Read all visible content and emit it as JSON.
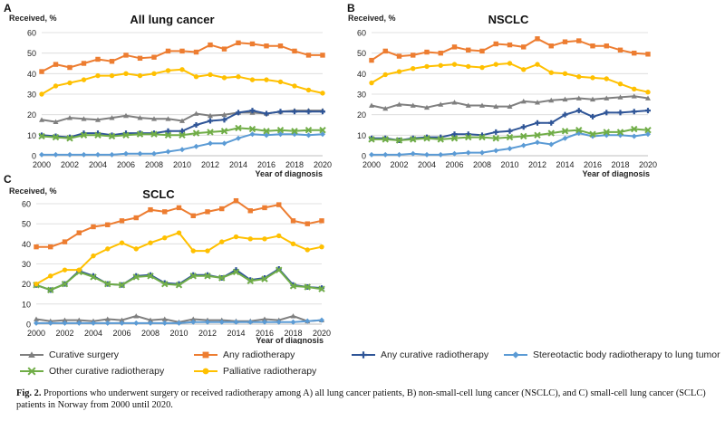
{
  "legend": [
    {
      "key": "curative_surgery",
      "label": "Curative surgery",
      "color": "#7f7f7f",
      "marker": "triangle"
    },
    {
      "key": "any_radiotherapy",
      "label": "Any radiotherapy",
      "color": "#ed7d31",
      "marker": "square"
    },
    {
      "key": "any_curative_rt",
      "label": "Any curative radiotherapy",
      "color": "#2f5597",
      "marker": "plus"
    },
    {
      "key": "sbrt",
      "label": "Stereotactic body radiotherapy to lung tumor",
      "color": "#5b9bd5",
      "marker": "diamond"
    },
    {
      "key": "other_curative_rt",
      "label": "Other curative radiotherapy",
      "color": "#70ad47",
      "marker": "cross"
    },
    {
      "key": "palliative_rt",
      "label": "Palliative radiotherapy",
      "color": "#ffc000",
      "marker": "circle"
    }
  ],
  "caption": {
    "label": "Fig. 2.",
    "text": "Proportions who underwent surgery or received radiotherapy among A) all lung cancer patients, B) non-small-cell lung cancer (NSCLC), and C) small-cell lung cancer (SCLC) patients in Norway from 2000 until 2020."
  },
  "chart_data": [
    {
      "type": "line",
      "panel": "A",
      "title": "All lung cancer",
      "ylabel": "Received, %",
      "xlabel": "Year of diagnosis",
      "ylim": [
        0,
        60
      ],
      "yticks": [
        "0",
        "10",
        "20",
        "30",
        "40",
        "50",
        "60"
      ],
      "x": [
        2000,
        2001,
        2002,
        2003,
        2004,
        2005,
        2006,
        2007,
        2008,
        2009,
        2010,
        2011,
        2012,
        2013,
        2014,
        2015,
        2016,
        2017,
        2018,
        2019,
        2020
      ],
      "xticks": [
        "2000",
        "2002",
        "2004",
        "2006",
        "2008",
        "2010",
        "2012",
        "2014",
        "2016",
        "2018",
        "2020"
      ],
      "series": [
        {
          "key": "curative_surgery",
          "values": [
            17.5,
            16.5,
            18.5,
            18,
            17.5,
            18.5,
            19.5,
            18.5,
            18,
            18,
            17,
            20.5,
            19.5,
            20,
            21,
            21,
            20.5,
            21.5,
            22,
            22,
            22
          ]
        },
        {
          "key": "any_radiotherapy",
          "values": [
            41,
            44.5,
            43,
            45,
            47,
            46,
            49,
            47.5,
            48,
            51,
            51,
            50.5,
            54,
            52,
            55,
            54.5,
            53.5,
            53.5,
            51,
            49,
            49
          ]
        },
        {
          "key": "any_curative_rt",
          "values": [
            10,
            9.5,
            9,
            11,
            11,
            10,
            11,
            11,
            11,
            12,
            12,
            15,
            17,
            17.5,
            21,
            22,
            20.5,
            21.5,
            21.5,
            21.5,
            21.5
          ]
        },
        {
          "key": "sbrt",
          "values": [
            0.5,
            0.5,
            0.5,
            0.5,
            0.5,
            0.5,
            1,
            1,
            1,
            2,
            3,
            4.5,
            6,
            6,
            8.5,
            10.5,
            10,
            10.5,
            10.5,
            10,
            10.5
          ]
        },
        {
          "key": "other_curative_rt",
          "values": [
            9.5,
            9,
            8.5,
            10,
            10,
            9.5,
            10,
            10.5,
            10.5,
            10,
            10,
            11,
            11.5,
            12,
            13.5,
            13,
            12,
            12.5,
            12,
            12.5,
            12.5
          ]
        },
        {
          "key": "palliative_rt",
          "values": [
            30,
            34,
            35.5,
            37,
            39,
            39,
            40,
            39,
            40,
            41.5,
            42,
            38.5,
            39.5,
            38,
            38.5,
            37,
            37,
            36,
            34,
            32,
            30.5
          ]
        }
      ]
    },
    {
      "type": "line",
      "panel": "B",
      "title": "NSCLC",
      "ylabel": "Received, %",
      "xlabel": "Year of diagnosis",
      "ylim": [
        0,
        60
      ],
      "yticks": [
        "0",
        "10",
        "20",
        "30",
        "40",
        "50",
        "60"
      ],
      "x": [
        2000,
        2001,
        2002,
        2003,
        2004,
        2005,
        2006,
        2007,
        2008,
        2009,
        2010,
        2011,
        2012,
        2013,
        2014,
        2015,
        2016,
        2017,
        2018,
        2019,
        2020
      ],
      "xticks": [
        "2000",
        "2002",
        "2004",
        "2006",
        "2008",
        "2010",
        "2012",
        "2014",
        "2016",
        "2018",
        "2020"
      ],
      "series": [
        {
          "key": "curative_surgery",
          "values": [
            24.5,
            23,
            25,
            24.5,
            23.5,
            25,
            26,
            24.5,
            24.5,
            24,
            24,
            26.5,
            26,
            27,
            27.5,
            28,
            27.5,
            28,
            28.5,
            29,
            28
          ]
        },
        {
          "key": "any_radiotherapy",
          "values": [
            46.5,
            51,
            48.5,
            49,
            50.5,
            50,
            53,
            51.5,
            51,
            54.5,
            54,
            53,
            57,
            53.5,
            55.5,
            56,
            53.5,
            53.5,
            51.5,
            50,
            49.5
          ]
        },
        {
          "key": "any_curative_rt",
          "values": [
            8.5,
            8.5,
            7.5,
            8.5,
            9,
            9,
            10.5,
            10.5,
            10,
            11.5,
            12,
            14,
            16,
            16,
            20,
            22,
            19,
            21,
            21,
            21.5,
            22
          ]
        },
        {
          "key": "sbrt",
          "values": [
            0.5,
            0.5,
            0.5,
            1,
            0.5,
            0.5,
            1,
            1.5,
            1.5,
            2.5,
            3.5,
            5,
            6.5,
            5.5,
            8.5,
            11,
            9.5,
            10,
            10,
            9.5,
            10.5
          ]
        },
        {
          "key": "other_curative_rt",
          "values": [
            8,
            8,
            7.5,
            8,
            8.5,
            8,
            8.5,
            9,
            9,
            8.5,
            9,
            9.5,
            10,
            11,
            12,
            12.5,
            10.5,
            11.5,
            11.5,
            13,
            12.5
          ]
        },
        {
          "key": "palliative_rt",
          "values": [
            35.5,
            39.5,
            41,
            42.5,
            43.5,
            44,
            44.5,
            43.5,
            43,
            44.5,
            45,
            42,
            44.5,
            40.5,
            40,
            38.5,
            38,
            37.5,
            35,
            32.5,
            31
          ]
        }
      ]
    },
    {
      "type": "line",
      "panel": "C",
      "title": "SCLC",
      "ylabel": "Received, %",
      "xlabel": "Year of diagnosis",
      "ylim": [
        0,
        60
      ],
      "yticks": [
        "0",
        "10",
        "20",
        "30",
        "40",
        "50",
        "60"
      ],
      "x": [
        2000,
        2001,
        2002,
        2003,
        2004,
        2005,
        2006,
        2007,
        2008,
        2009,
        2010,
        2011,
        2012,
        2013,
        2014,
        2015,
        2016,
        2017,
        2018,
        2019,
        2020
      ],
      "xticks": [
        "2000",
        "2002",
        "2004",
        "2006",
        "2008",
        "2010",
        "2012",
        "2014",
        "2016",
        "2018",
        "2020"
      ],
      "series": [
        {
          "key": "curative_surgery",
          "values": [
            2.5,
            1.5,
            2,
            2,
            1.5,
            2.5,
            2,
            4,
            2,
            2.5,
            1,
            2.5,
            2,
            2,
            1.5,
            1.5,
            2.5,
            2,
            4,
            1.5,
            2
          ]
        },
        {
          "key": "any_radiotherapy",
          "values": [
            38.5,
            38.5,
            41,
            45.5,
            48.5,
            49.5,
            51.5,
            53,
            57,
            56,
            58,
            54,
            56,
            57.5,
            61.5,
            56.5,
            58,
            59.5,
            51.5,
            50,
            51.5
          ]
        },
        {
          "key": "any_curative_rt",
          "values": [
            19.5,
            17,
            20,
            26.5,
            24,
            20,
            19.5,
            24,
            24.5,
            20.5,
            20,
            24.5,
            24.5,
            23,
            27,
            22,
            23,
            27.5,
            19.5,
            18.5,
            18
          ]
        },
        {
          "key": "sbrt",
          "values": [
            0.5,
            0.5,
            0.5,
            0.5,
            0.5,
            0.5,
            0.5,
            0.5,
            0.5,
            0.5,
            0.5,
            1,
            1,
            1,
            1,
            1,
            1,
            1,
            1,
            1.5,
            2
          ]
        },
        {
          "key": "other_curative_rt",
          "values": [
            19.5,
            17,
            20,
            26,
            23.5,
            20,
            19.5,
            23.5,
            24,
            20,
            19.5,
            24,
            24,
            23,
            26,
            21.5,
            22.5,
            27,
            19,
            18.5,
            17.5
          ]
        },
        {
          "key": "palliative_rt",
          "values": [
            20,
            24,
            27,
            27,
            34,
            37.5,
            40.5,
            37.5,
            40.5,
            43,
            45.5,
            36.5,
            36.5,
            41,
            43.5,
            42.5,
            42.5,
            44,
            40,
            37,
            38.5
          ]
        }
      ]
    }
  ]
}
